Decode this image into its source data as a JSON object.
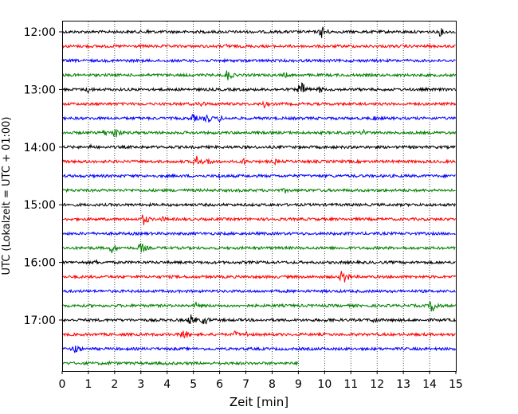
{
  "chart_data": {
    "type": "line",
    "chart_kind": "helicorder seismogram",
    "xlabel": "Zeit  [min]",
    "ylabel": "UTC (Lokalzeit = UTC + 01:00)",
    "xlim": [
      0,
      15
    ],
    "xticks": [
      "0",
      "1",
      "2",
      "3",
      "4",
      "5",
      "6",
      "7",
      "8",
      "9",
      "10",
      "11",
      "12",
      "13",
      "14",
      "15"
    ],
    "y_tick_labels": [
      "12:00",
      "13:00",
      "14:00",
      "15:00",
      "16:00",
      "17:00"
    ],
    "row_interval_min": 15,
    "vertical_grid": true,
    "trace_colors": [
      "#000000",
      "#ff0000",
      "#0000ff",
      "#008000"
    ],
    "rows": [
      {
        "start": "12:00",
        "color": "#000000",
        "end_min": 15,
        "events": [
          [
            3.3,
            4
          ],
          [
            9.9,
            9
          ],
          [
            14.4,
            6
          ]
        ]
      },
      {
        "start": "12:15",
        "color": "#ff0000",
        "end_min": 15,
        "events": [
          [
            6.3,
            4
          ]
        ]
      },
      {
        "start": "12:30",
        "color": "#0000ff",
        "end_min": 15,
        "events": []
      },
      {
        "start": "12:45",
        "color": "#008000",
        "end_min": 15,
        "events": [
          [
            6.3,
            8
          ],
          [
            8.5,
            4
          ]
        ]
      },
      {
        "start": "13:00",
        "color": "#000000",
        "end_min": 15,
        "events": [
          [
            1.0,
            5
          ],
          [
            9.1,
            11
          ],
          [
            9.8,
            5
          ]
        ]
      },
      {
        "start": "13:15",
        "color": "#ff0000",
        "end_min": 15,
        "events": [
          [
            5.3,
            5
          ],
          [
            7.7,
            5
          ]
        ]
      },
      {
        "start": "13:30",
        "color": "#0000ff",
        "end_min": 15,
        "events": [
          [
            5.0,
            6
          ],
          [
            5.5,
            8
          ],
          [
            6.0,
            5
          ],
          [
            11.9,
            4
          ]
        ]
      },
      {
        "start": "13:45",
        "color": "#008000",
        "end_min": 15,
        "events": [
          [
            1.6,
            5
          ],
          [
            2.0,
            9
          ],
          [
            11.5,
            5
          ]
        ]
      },
      {
        "start": "14:00",
        "color": "#000000",
        "end_min": 15,
        "events": [
          [
            1.1,
            4
          ]
        ]
      },
      {
        "start": "14:15",
        "color": "#ff0000",
        "end_min": 15,
        "events": [
          [
            5.1,
            9
          ],
          [
            5.6,
            5
          ],
          [
            6.9,
            5
          ],
          [
            8.1,
            4
          ]
        ]
      },
      {
        "start": "14:30",
        "color": "#0000ff",
        "end_min": 15,
        "events": [
          [
            6.0,
            4
          ]
        ]
      },
      {
        "start": "14:45",
        "color": "#008000",
        "end_min": 15,
        "events": [
          [
            8.5,
            4
          ]
        ]
      },
      {
        "start": "15:00",
        "color": "#000000",
        "end_min": 15,
        "events": []
      },
      {
        "start": "15:15",
        "color": "#ff0000",
        "end_min": 15,
        "events": [
          [
            3.1,
            8
          ],
          [
            3.8,
            4
          ]
        ]
      },
      {
        "start": "15:30",
        "color": "#0000ff",
        "end_min": 15,
        "events": []
      },
      {
        "start": "15:45",
        "color": "#008000",
        "end_min": 15,
        "events": [
          [
            1.9,
            7
          ],
          [
            3.0,
            8
          ]
        ]
      },
      {
        "start": "16:00",
        "color": "#000000",
        "end_min": 15,
        "events": [
          [
            1.3,
            4
          ]
        ]
      },
      {
        "start": "16:15",
        "color": "#ff0000",
        "end_min": 15,
        "events": [
          [
            10.7,
            11
          ]
        ]
      },
      {
        "start": "16:30",
        "color": "#0000ff",
        "end_min": 15,
        "events": []
      },
      {
        "start": "16:45",
        "color": "#008000",
        "end_min": 15,
        "events": [
          [
            5.1,
            5
          ],
          [
            14.1,
            10
          ]
        ]
      },
      {
        "start": "17:00",
        "color": "#000000",
        "end_min": 15,
        "events": [
          [
            4.9,
            8
          ],
          [
            5.4,
            7
          ],
          [
            10.1,
            4
          ],
          [
            11.9,
            5
          ]
        ]
      },
      {
        "start": "17:15",
        "color": "#ff0000",
        "end_min": 15,
        "events": [
          [
            4.6,
            8
          ],
          [
            6.6,
            5
          ],
          [
            7.0,
            5
          ]
        ]
      },
      {
        "start": "17:30",
        "color": "#0000ff",
        "end_min": 15,
        "events": [
          [
            0.5,
            7
          ]
        ]
      },
      {
        "start": "17:45",
        "color": "#008000",
        "end_min": 9,
        "events": [
          [
            1.8,
            3
          ]
        ]
      }
    ]
  }
}
